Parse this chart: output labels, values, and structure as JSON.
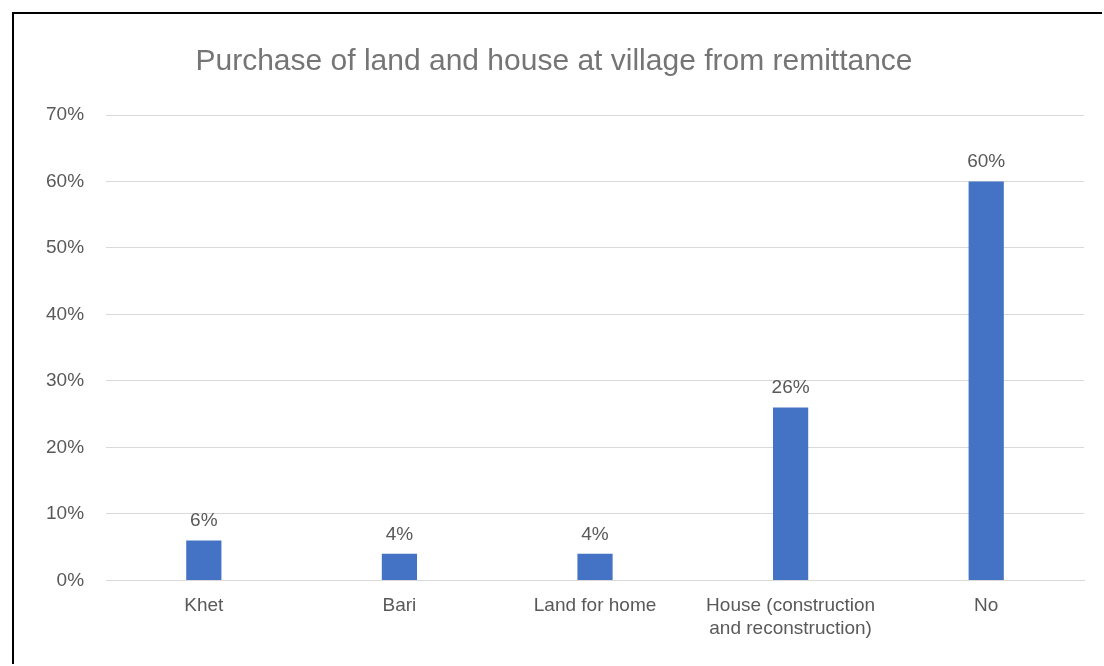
{
  "chart_data": {
    "type": "bar",
    "title": "Purchase of land and house at village from remittance",
    "categories": [
      "Khet",
      "Bari",
      "Land for home",
      "House (construction and reconstruction)",
      "No"
    ],
    "values": [
      6,
      4,
      4,
      26,
      60
    ],
    "color": "#4472c4",
    "value_labels": [
      "6%",
      "4%",
      "4%",
      "26%",
      "60%"
    ],
    "ylim": [
      0,
      70
    ],
    "yticks": [
      {
        "value": 0,
        "label": "0%"
      },
      {
        "value": 10,
        "label": "10%"
      },
      {
        "value": 20,
        "label": "20%"
      },
      {
        "value": 30,
        "label": "30%"
      },
      {
        "value": 40,
        "label": "40%"
      },
      {
        "value": 50,
        "label": "50%"
      },
      {
        "value": 60,
        "label": "60%"
      },
      {
        "value": 70,
        "label": "70%"
      }
    ],
    "grid": "y",
    "legend": false
  }
}
